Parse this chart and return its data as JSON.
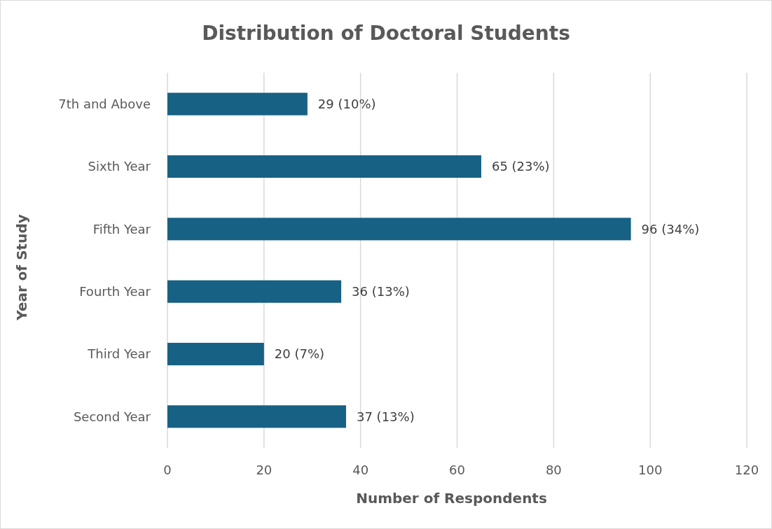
{
  "chart_data": {
    "type": "bar",
    "orientation": "horizontal",
    "title": "Distribution of Doctoral Students",
    "xlabel": "Number of Respondents",
    "ylabel": "Year of Study",
    "categories": [
      "7th and Above",
      "Sixth Year",
      "Fifth Year",
      "Fourth Year",
      "Third Year",
      "Second Year"
    ],
    "values": [
      29,
      65,
      96,
      36,
      20,
      37
    ],
    "value_labels": [
      "29 (10%)",
      "65 (23%)",
      "96 (34%)",
      "36 (13%)",
      "20 (7%)",
      "37 (13%)"
    ],
    "color": "#176184",
    "xlim": [
      0,
      120
    ],
    "xticks": [
      0,
      20,
      40,
      60,
      80,
      100,
      120
    ],
    "grid": "x"
  }
}
